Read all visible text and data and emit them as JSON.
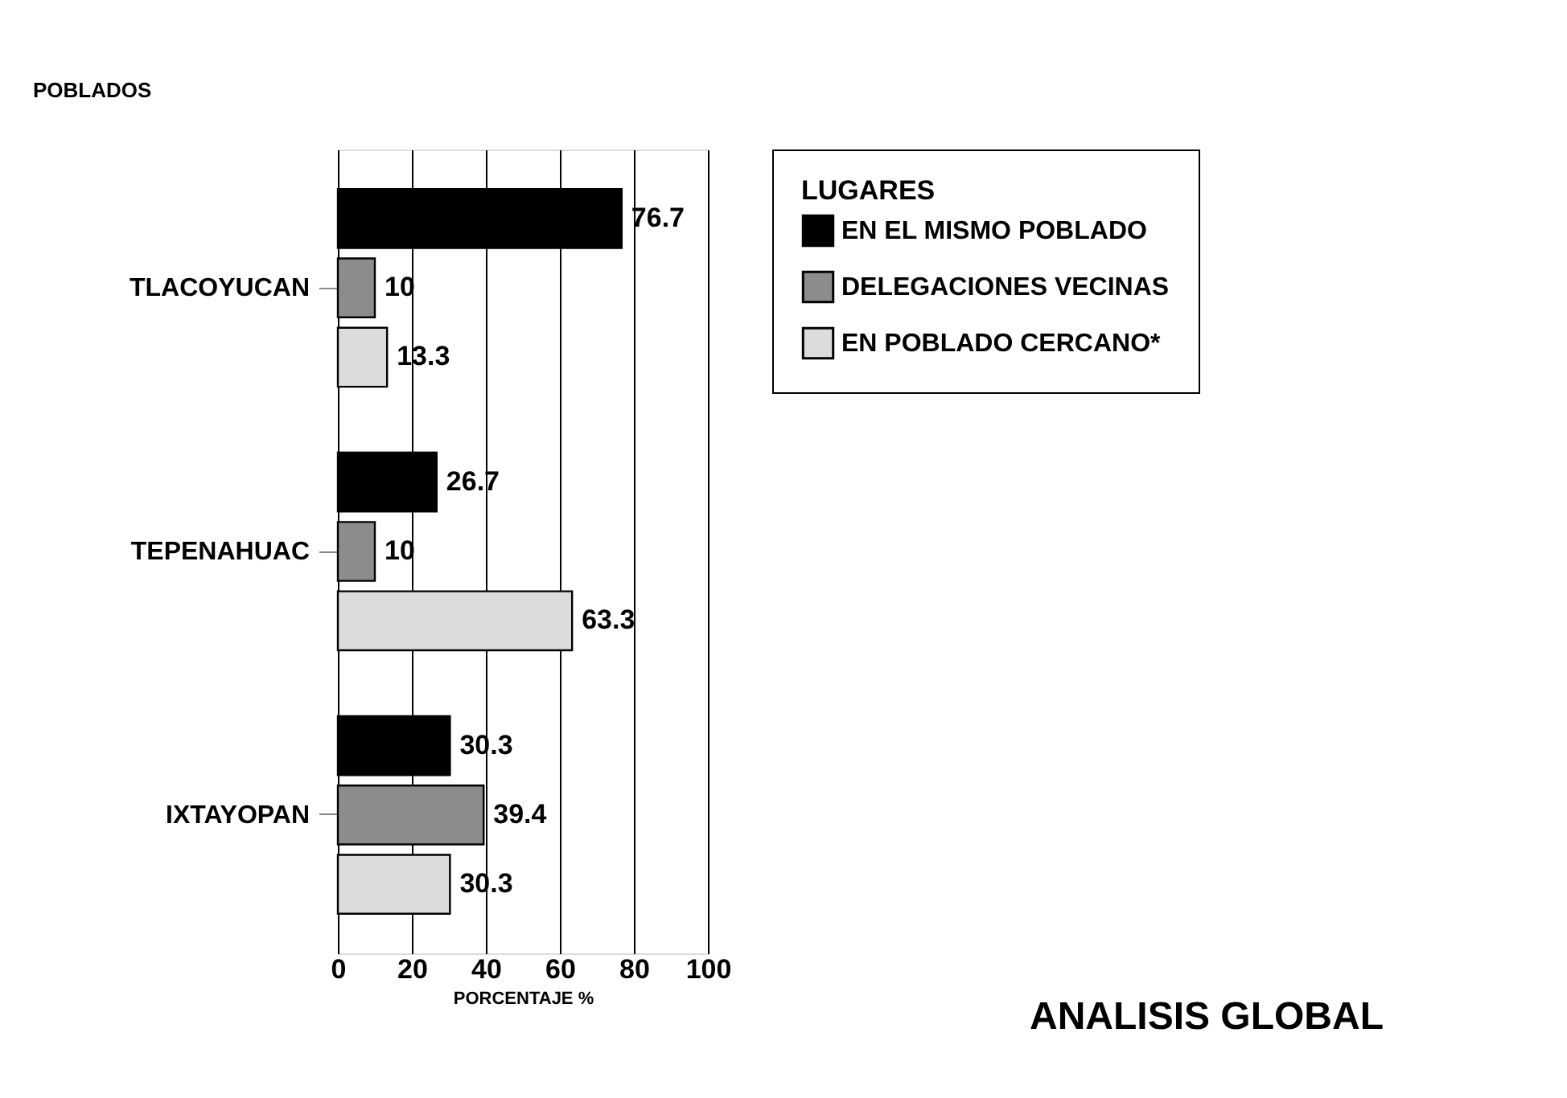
{
  "chart_data": {
    "type": "bar",
    "orientation": "horizontal",
    "ylabel": "POBLADOS",
    "xlabel": "PORCENTAJE %",
    "legend_title": "LUGARES",
    "legend": "top right",
    "grid": "x",
    "data_labels": true,
    "categories": [
      "TLACOYUCAN",
      "TEPENAHUAC",
      "IXTAYOPAN"
    ],
    "series": [
      {
        "name": "EN EL MISMO POBLADO",
        "color": "#000000",
        "values": [
          76.7,
          26.7,
          30.3
        ]
      },
      {
        "name": "DELEGACIONES VECINAS",
        "color": "#8c8c8c",
        "values": [
          10,
          10,
          39.4
        ]
      },
      {
        "name": "EN POBLADO CERCANO*",
        "color": "#dcdcdc",
        "values": [
          13.3,
          63.3,
          30.3
        ]
      }
    ],
    "xlim": [
      0,
      100
    ],
    "xticks": [
      0,
      20,
      40,
      60,
      80,
      100
    ],
    "annotations": [
      "ANALISIS GLOBAL"
    ]
  }
}
